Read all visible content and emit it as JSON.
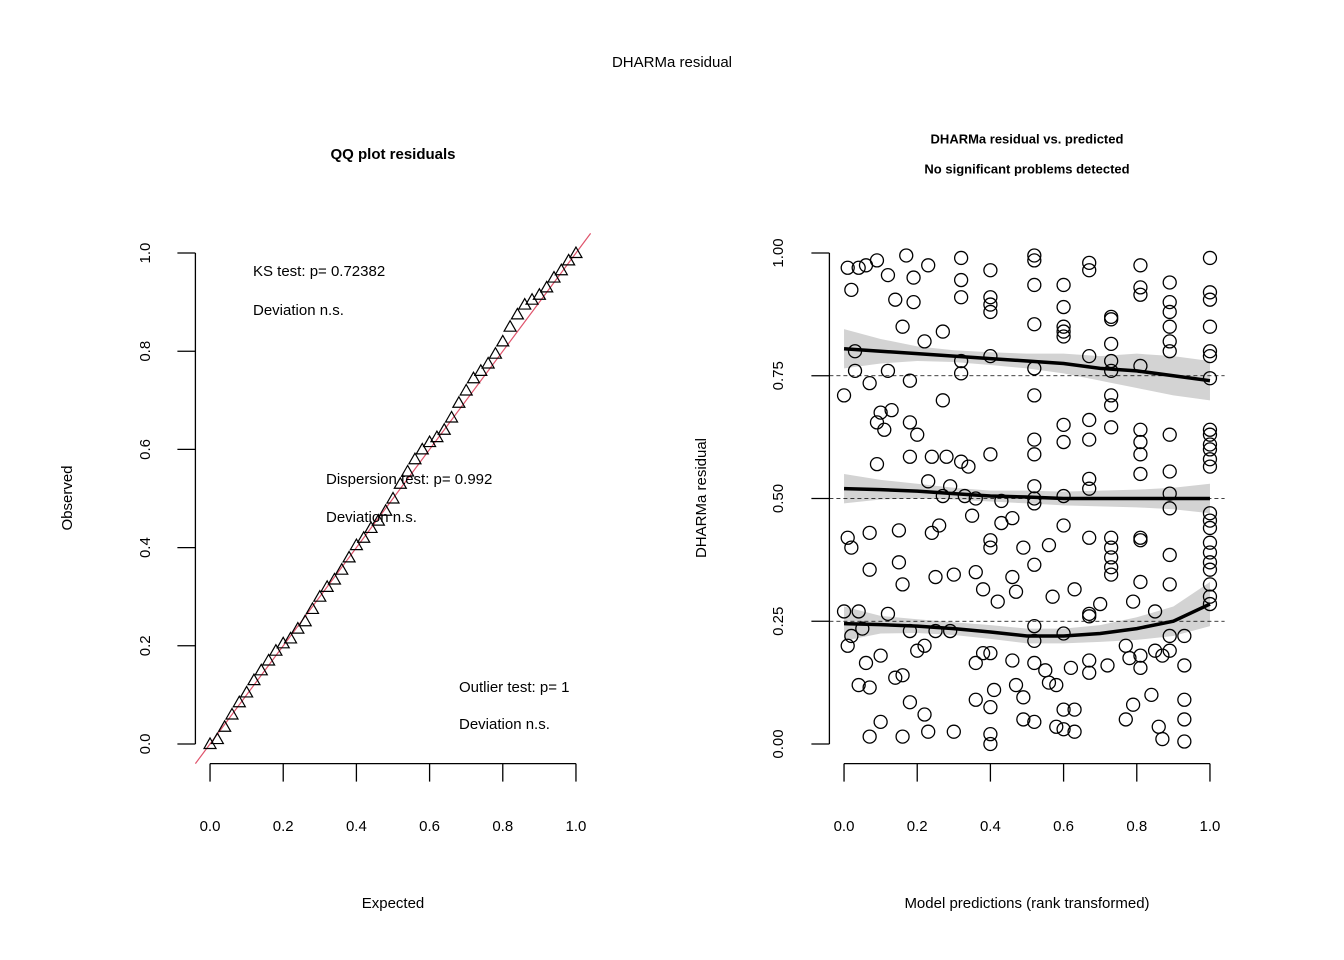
{
  "title": "DHARMa residual",
  "chart_data": [
    {
      "type": "qq",
      "title": "QQ plot residuals",
      "xlabel": "Expected",
      "ylabel": "Observed",
      "xlim": [
        -0.04,
        1.04
      ],
      "ylim": [
        -0.04,
        1.04
      ],
      "xticks": [
        {
          "value": 0,
          "label": "0.0"
        },
        0.2,
        0.4,
        0.6,
        0.8,
        {
          "value": 1,
          "label": "1.0"
        }
      ],
      "yticks": [
        {
          "value": 0,
          "label": "0.0"
        },
        0.2,
        0.4,
        0.6,
        0.8,
        {
          "value": 1,
          "label": "1.0"
        }
      ],
      "x": [
        0,
        0.02,
        0.04,
        0.06,
        0.08,
        0.1,
        0.12,
        0.14,
        0.16,
        0.18,
        0.2,
        0.22,
        0.24,
        0.26,
        0.28,
        0.3,
        0.32,
        0.34,
        0.36,
        0.38,
        0.4,
        0.42,
        0.44,
        0.46,
        0.48,
        0.5,
        0.52,
        0.54,
        0.56,
        0.58,
        0.6,
        0.62,
        0.64,
        0.66,
        0.68,
        0.7,
        0.72,
        0.74,
        0.76,
        0.78,
        0.8,
        0.82,
        0.84,
        0.86,
        0.88,
        0.9,
        0.92,
        0.94,
        0.96,
        0.98,
        1
      ],
      "values": [
        0,
        0.01,
        0.035,
        0.06,
        0.085,
        0.105,
        0.13,
        0.15,
        0.17,
        0.19,
        0.205,
        0.215,
        0.235,
        0.25,
        0.275,
        0.3,
        0.32,
        0.335,
        0.355,
        0.38,
        0.405,
        0.42,
        0.44,
        0.455,
        0.475,
        0.5,
        0.53,
        0.555,
        0.58,
        0.6,
        0.615,
        0.625,
        0.64,
        0.665,
        0.695,
        0.72,
        0.745,
        0.76,
        0.775,
        0.795,
        0.82,
        0.85,
        0.875,
        0.895,
        0.905,
        0.915,
        0.93,
        0.95,
        0.965,
        0.985,
        1
      ],
      "color": "#000000",
      "refline_color": "#df536b",
      "annotations": [
        "KS test: p= 0.72382",
        "Deviation  n.s.",
        "Dispersion test: p= 0.992",
        "Deviation  n.s.",
        "Outlier test: p= 1",
        "Deviation  n.s."
      ]
    },
    {
      "type": "scatter",
      "title": "DHARMa residual vs. predicted",
      "subtitle": "No significant problems detected",
      "xlabel": "Model predictions (rank transformed)",
      "ylabel": "DHARMa residual",
      "xlim": [
        -0.04,
        1.04
      ],
      "ylim": [
        -0.04,
        1.04
      ],
      "xticks": [
        {
          "value": 0,
          "label": "0.0"
        },
        0.2,
        0.4,
        0.6,
        0.8,
        {
          "value": 1,
          "label": "1.0"
        }
      ],
      "yticks": [
        {
          "value": 0,
          "label": "0.00"
        },
        0.25,
        {
          "value": 0.5,
          "label": "0.50"
        },
        0.75,
        {
          "value": 1,
          "label": "1.00"
        }
      ],
      "x": [
        1,
        1,
        1,
        1,
        1,
        1,
        1,
        1,
        1,
        1,
        1,
        1,
        1,
        1,
        1,
        1,
        1,
        1,
        1,
        1,
        1,
        1,
        1,
        0.93,
        0.93,
        0.93,
        0.93,
        0.93,
        0.89,
        0.89,
        0.89,
        0.89,
        0.89,
        0.89,
        0.89,
        0.89,
        0.89,
        0.89,
        0.89,
        0.89,
        0.89,
        0.89,
        0.81,
        0.81,
        0.81,
        0.81,
        0.81,
        0.81,
        0.81,
        0.81,
        0.81,
        0.81,
        0.81,
        0.81,
        0.81,
        0.73,
        0.73,
        0.73,
        0.73,
        0.73,
        0.73,
        0.73,
        0.73,
        0.73,
        0.73,
        0.73,
        0.73,
        0.73,
        0.67,
        0.67,
        0.67,
        0.67,
        0.67,
        0.67,
        0.67,
        0.67,
        0.67,
        0.67,
        0.67,
        0.6,
        0.6,
        0.6,
        0.6,
        0.6,
        0.6,
        0.6,
        0.6,
        0.6,
        0.6,
        0.6,
        0.6,
        0.52,
        0.52,
        0.52,
        0.52,
        0.52,
        0.52,
        0.52,
        0.52,
        0.52,
        0.52,
        0.52,
        0.52,
        0.52,
        0.52,
        0.52,
        0.52,
        0.4,
        0.4,
        0.4,
        0.4,
        0.4,
        0.4,
        0.4,
        0.4,
        0.4,
        0.32,
        0.32,
        0.32,
        0.32,
        0.32,
        0.32,
        0.01,
        0.02,
        0.04,
        0.06,
        0.09,
        0.12,
        0.17,
        0.19,
        0.23,
        0.14,
        0.19,
        0.16,
        0.22,
        0.27,
        0.03,
        0.03,
        0.07,
        0.12,
        0.18,
        0,
        0.27,
        0.1,
        0.13,
        0.09,
        0.11,
        0.18,
        0.2,
        0.09,
        0.18,
        0.24,
        0.28,
        0.34,
        0.23,
        0.29,
        0.27,
        0.33,
        0.36,
        0.43,
        0.35,
        0.46,
        0.43,
        0.26,
        0.24,
        0.07,
        0.15,
        0.01,
        0.02,
        0.07,
        0.15,
        0.16,
        0.25,
        0.3,
        0.36,
        0.38,
        0.42,
        0.46,
        0.47,
        0.49,
        0.56,
        0.57,
        0.63,
        0.67,
        0.7,
        0.79,
        0.85,
        0,
        0.04,
        0.02,
        0.05,
        0.01,
        0.12,
        0.18,
        0.25,
        0.29,
        0.22,
        0.2,
        0.06,
        0.1,
        0.14,
        0.16,
        0.04,
        0.07,
        0.36,
        0.38,
        0.46,
        0.55,
        0.56,
        0.58,
        0.62,
        0.72,
        0.78,
        0.77,
        0.85,
        0.87,
        0.18,
        0.22,
        0.23,
        0.3,
        0.36,
        0.41,
        0.4,
        0.4,
        0.4,
        0.47,
        0.49,
        0.49,
        0.58,
        0.63,
        0.63,
        0.77,
        0.79,
        0.84,
        0.86,
        0.87,
        0.07,
        0.1,
        0.16
      ],
      "values": [
        0.99,
        0.92,
        0.905,
        0.85,
        0.8,
        0.79,
        0.745,
        0.64,
        0.63,
        0.61,
        0.6,
        0.58,
        0.565,
        0.47,
        0.455,
        0.44,
        0.41,
        0.39,
        0.37,
        0.355,
        0.325,
        0.3,
        0.285,
        0.09,
        0.05,
        0.005,
        0.22,
        0.16,
        0.94,
        0.9,
        0.88,
        0.85,
        0.82,
        0.8,
        0.63,
        0.555,
        0.51,
        0.48,
        0.385,
        0.325,
        0.22,
        0.19,
        0.975,
        0.93,
        0.915,
        0.77,
        0.64,
        0.615,
        0.59,
        0.55,
        0.42,
        0.415,
        0.33,
        0.18,
        0.155,
        0.87,
        0.865,
        0.815,
        0.78,
        0.76,
        0.71,
        0.69,
        0.645,
        0.42,
        0.4,
        0.38,
        0.36,
        0.345,
        0.98,
        0.965,
        0.79,
        0.66,
        0.62,
        0.54,
        0.52,
        0.42,
        0.265,
        0.17,
        0.145,
        0.935,
        0.89,
        0.85,
        0.84,
        0.83,
        0.65,
        0.615,
        0.505,
        0.445,
        0.225,
        0.07,
        0.03,
        0.995,
        0.985,
        0.935,
        0.855,
        0.765,
        0.71,
        0.62,
        0.59,
        0.525,
        0.5,
        0.49,
        0.365,
        0.24,
        0.21,
        0.165,
        0.045,
        0.965,
        0.91,
        0.895,
        0.88,
        0.79,
        0.59,
        0.415,
        0.4,
        0.185,
        0.99,
        0.945,
        0.91,
        0.78,
        0.755,
        0.575,
        0.97,
        0.925,
        0.97,
        0.975,
        0.985,
        0.955,
        0.995,
        0.95,
        0.975,
        0.905,
        0.9,
        0.85,
        0.82,
        0.84,
        0.8,
        0.76,
        0.735,
        0.76,
        0.74,
        0.71,
        0.7,
        0.675,
        0.68,
        0.655,
        0.64,
        0.655,
        0.63,
        0.57,
        0.585,
        0.585,
        0.585,
        0.565,
        0.535,
        0.525,
        0.505,
        0.505,
        0.5,
        0.495,
        0.465,
        0.46,
        0.45,
        0.445,
        0.43,
        0.43,
        0.435,
        0.42,
        0.4,
        0.355,
        0.37,
        0.325,
        0.34,
        0.345,
        0.35,
        0.315,
        0.29,
        0.34,
        0.31,
        0.4,
        0.405,
        0.3,
        0.315,
        0.26,
        0.285,
        0.29,
        0.27,
        0.27,
        0.27,
        0.22,
        0.235,
        0.2,
        0.265,
        0.23,
        0.23,
        0.23,
        0.2,
        0.19,
        0.165,
        0.18,
        0.135,
        0.14,
        0.12,
        0.115,
        0.165,
        0.185,
        0.17,
        0.15,
        0.125,
        0.12,
        0.155,
        0.16,
        0.175,
        0.2,
        0.19,
        0.18,
        0.085,
        0.06,
        0.025,
        0.025,
        0.09,
        0.11,
        0.075,
        0.02,
        0,
        0.12,
        0.095,
        0.05,
        0.035,
        0.07,
        0.025,
        0.05,
        0.08,
        0.1,
        0.035,
        0.01,
        0.015,
        0.045,
        0.015
      ],
      "color": "#000000",
      "band_color": "#d3d3d3",
      "hlines": [
        0.25,
        0.5,
        0.75
      ],
      "fit_x": [
        0,
        0.1,
        0.2,
        0.3,
        0.4,
        0.5,
        0.6,
        0.7,
        0.8,
        0.9,
        1
      ],
      "fits": [
        {
          "values": [
            0.805,
            0.8,
            0.795,
            0.79,
            0.785,
            0.78,
            0.775,
            0.765,
            0.76,
            0.75,
            0.74
          ],
          "lower": [
            0.765,
            0.775,
            0.78,
            0.778,
            0.772,
            0.765,
            0.755,
            0.74,
            0.725,
            0.71,
            0.7
          ],
          "upper": [
            0.845,
            0.825,
            0.81,
            0.802,
            0.798,
            0.795,
            0.795,
            0.79,
            0.795,
            0.79,
            0.78
          ]
        },
        {
          "values": [
            0.52,
            0.518,
            0.515,
            0.51,
            0.505,
            0.503,
            0.5,
            0.5,
            0.5,
            0.5,
            0.5
          ],
          "lower": [
            0.49,
            0.498,
            0.5,
            0.498,
            0.494,
            0.49,
            0.486,
            0.484,
            0.482,
            0.478,
            0.47
          ],
          "upper": [
            0.55,
            0.538,
            0.53,
            0.522,
            0.516,
            0.516,
            0.514,
            0.516,
            0.518,
            0.522,
            0.53
          ]
        },
        {
          "values": [
            0.245,
            0.243,
            0.24,
            0.235,
            0.228,
            0.22,
            0.22,
            0.225,
            0.235,
            0.25,
            0.285
          ],
          "lower": [
            0.21,
            0.225,
            0.226,
            0.222,
            0.214,
            0.205,
            0.205,
            0.208,
            0.212,
            0.22,
            0.24
          ],
          "upper": [
            0.28,
            0.261,
            0.254,
            0.248,
            0.242,
            0.235,
            0.235,
            0.242,
            0.258,
            0.28,
            0.33
          ]
        }
      ]
    }
  ]
}
